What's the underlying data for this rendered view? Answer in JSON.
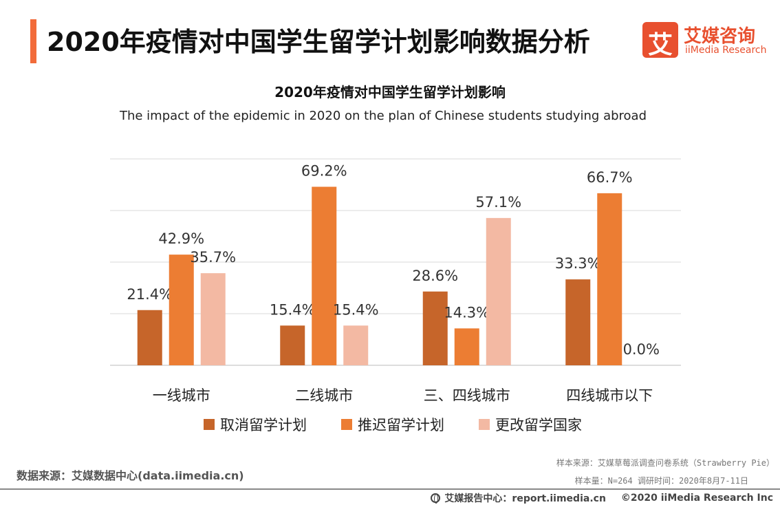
{
  "header": {
    "title": "2020年疫情对中国学生留学计划影响数据分析",
    "logo_mark": "艾",
    "logo_cn": "艾媒咨询",
    "logo_en": "iiMedia Research",
    "accent_color": "#f26b3a"
  },
  "chart_data": {
    "type": "bar",
    "title": "2020年疫情对中国学生留学计划影响",
    "subtitle": "The impact of the epidemic in 2020 on the plan of Chinese students studying abroad",
    "categories": [
      "一线城市",
      "二线城市",
      "三、四线城市",
      "四线城市以下"
    ],
    "series": [
      {
        "name": "取消留学计划",
        "color": "#c6652a",
        "values": [
          21.4,
          15.4,
          28.6,
          33.3
        ],
        "labels": [
          "21.4%",
          "15.4%",
          "28.6%",
          "33.3%"
        ]
      },
      {
        "name": "推迟留学计划",
        "color": "#ec7d33",
        "values": [
          42.9,
          69.2,
          14.3,
          66.7
        ],
        "labels": [
          "42.9%",
          "69.2%",
          "14.3%",
          "66.7%"
        ]
      },
      {
        "name": "更改留学国家",
        "color": "#f3b9a3",
        "values": [
          35.7,
          15.4,
          57.1,
          0.0
        ],
        "labels": [
          "35.7%",
          "15.4%",
          "57.1%",
          "0.0%"
        ]
      }
    ],
    "ylim": [
      0,
      80
    ],
    "grid": true,
    "legend_position": "bottom"
  },
  "footer": {
    "source": "数据来源：艾媒数据中心(data.iimedia.cn)",
    "sample_source": "样本来源：艾媒草莓派调查问卷系统（Strawberry Pie）",
    "sample_info": "样本量：N=264    调研时间：2020年8月7-11日",
    "report_center": "艾媒报告中心：report.iimedia.cn",
    "copyright": "©2020  iiMedia Research  Inc"
  }
}
